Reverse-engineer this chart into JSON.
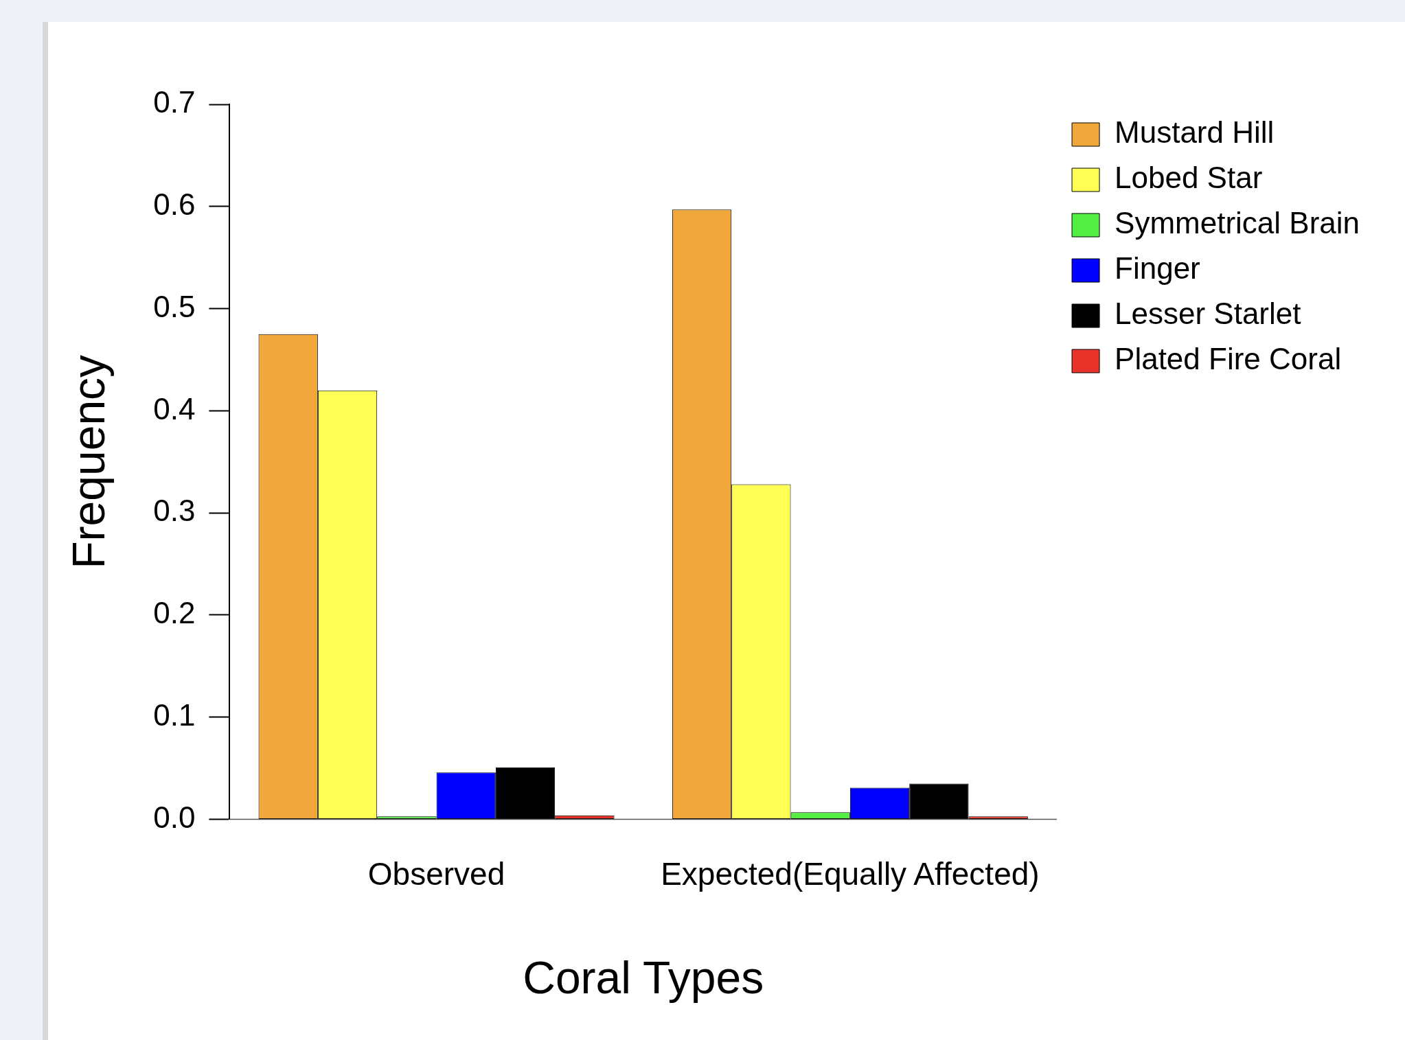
{
  "chart_data": {
    "type": "bar",
    "xlabel": "Coral Types",
    "ylabel": "Frequency",
    "categories": [
      "Observed",
      "Expected(Equally Affected)"
    ],
    "series": [
      {
        "name": "Mustard Hill",
        "color": "#f0a73c",
        "values": [
          0.475,
          0.597
        ]
      },
      {
        "name": "Lobed Star",
        "color": "#ffff55",
        "values": [
          0.42,
          0.328
        ]
      },
      {
        "name": "Symmetrical Brain",
        "color": "#55ee44",
        "values": [
          0.003,
          0.007
        ]
      },
      {
        "name": "Finger",
        "color": "#0000ff",
        "values": [
          0.046,
          0.031
        ]
      },
      {
        "name": "Lesser Starlet",
        "color": "#000000",
        "values": [
          0.051,
          0.035
        ]
      },
      {
        "name": "Plated Fire Coral",
        "color": "#e8332a",
        "values": [
          0.004,
          0.003
        ]
      }
    ],
    "ylim": [
      0,
      0.7
    ],
    "yticks": [
      {
        "value": 0,
        "label": "0.0"
      },
      {
        "value": 0.1,
        "label": "0.1"
      },
      {
        "value": 0.2,
        "label": "0.2"
      },
      {
        "value": 0.3,
        "label": "0.3"
      },
      {
        "value": 0.4,
        "label": "0.4"
      },
      {
        "value": 0.5,
        "label": "0.5"
      },
      {
        "value": 0.6,
        "label": "0.6"
      },
      {
        "value": 0.7,
        "label": "0.7"
      }
    ],
    "grid": false,
    "legend": "right"
  }
}
